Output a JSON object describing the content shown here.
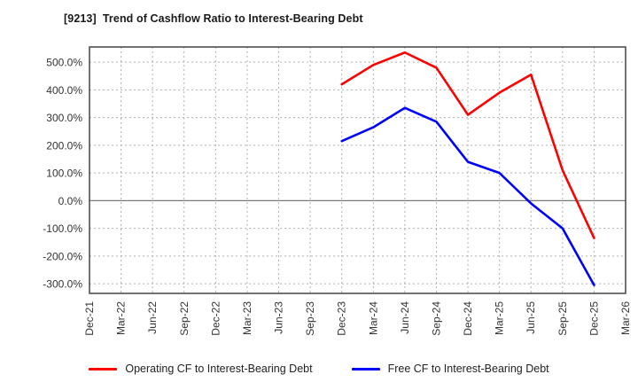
{
  "window": {
    "title": "[9213]  Trend of Cashflow Ratio to Interest-Bearing Debt"
  },
  "chart_data": {
    "type": "line",
    "title": "[9213]  Trend of Cashflow Ratio to Interest-Bearing Debt",
    "xlabel": "",
    "ylabel": "",
    "categories": [
      "Dec-21",
      "Mar-22",
      "Jun-22",
      "Sep-22",
      "Dec-22",
      "Mar-23",
      "Jun-23",
      "Sep-23",
      "Dec-23",
      "Mar-24",
      "Jun-24",
      "Sep-24",
      "Dec-24",
      "Mar-25",
      "Jun-25",
      "Sep-25",
      "Dec-25",
      "Mar-26"
    ],
    "series": [
      {
        "name": "Operating CF to Interest-Bearing Debt",
        "color": "#ff0000",
        "values": [
          null,
          null,
          null,
          null,
          null,
          null,
          null,
          null,
          420,
          490,
          535,
          480,
          310,
          390,
          455,
          110,
          -135,
          null
        ]
      },
      {
        "name": "Free CF to Interest-Bearing Debt",
        "color": "#0000ff",
        "values": [
          null,
          null,
          null,
          null,
          null,
          null,
          null,
          null,
          215,
          265,
          335,
          285,
          140,
          100,
          -10,
          -100,
          -305,
          null
        ]
      }
    ],
    "y_ticks": [
      {
        "value": 500,
        "label": "500.0%"
      },
      {
        "value": 400,
        "label": "400.0%"
      },
      {
        "value": 300,
        "label": "300.0%"
      },
      {
        "value": 200,
        "label": "200.0%"
      },
      {
        "value": 100,
        "label": "100.0%"
      },
      {
        "value": 0,
        "label": "0.0%"
      },
      {
        "value": -100,
        "label": "-100.0%"
      },
      {
        "value": -200,
        "label": "-200.0%"
      },
      {
        "value": -300,
        "label": "-300.0%"
      }
    ],
    "ylim": [
      -335,
      555
    ],
    "grid": true,
    "legend_position": "bottom",
    "style": {
      "grid_color": "#b0b0b0",
      "zero_line_color": "#7a7a7a",
      "frame_color": "#444444",
      "tick_label_color": "#333333",
      "title_color": "#1a1a1a",
      "line_width": 2.6
    }
  }
}
